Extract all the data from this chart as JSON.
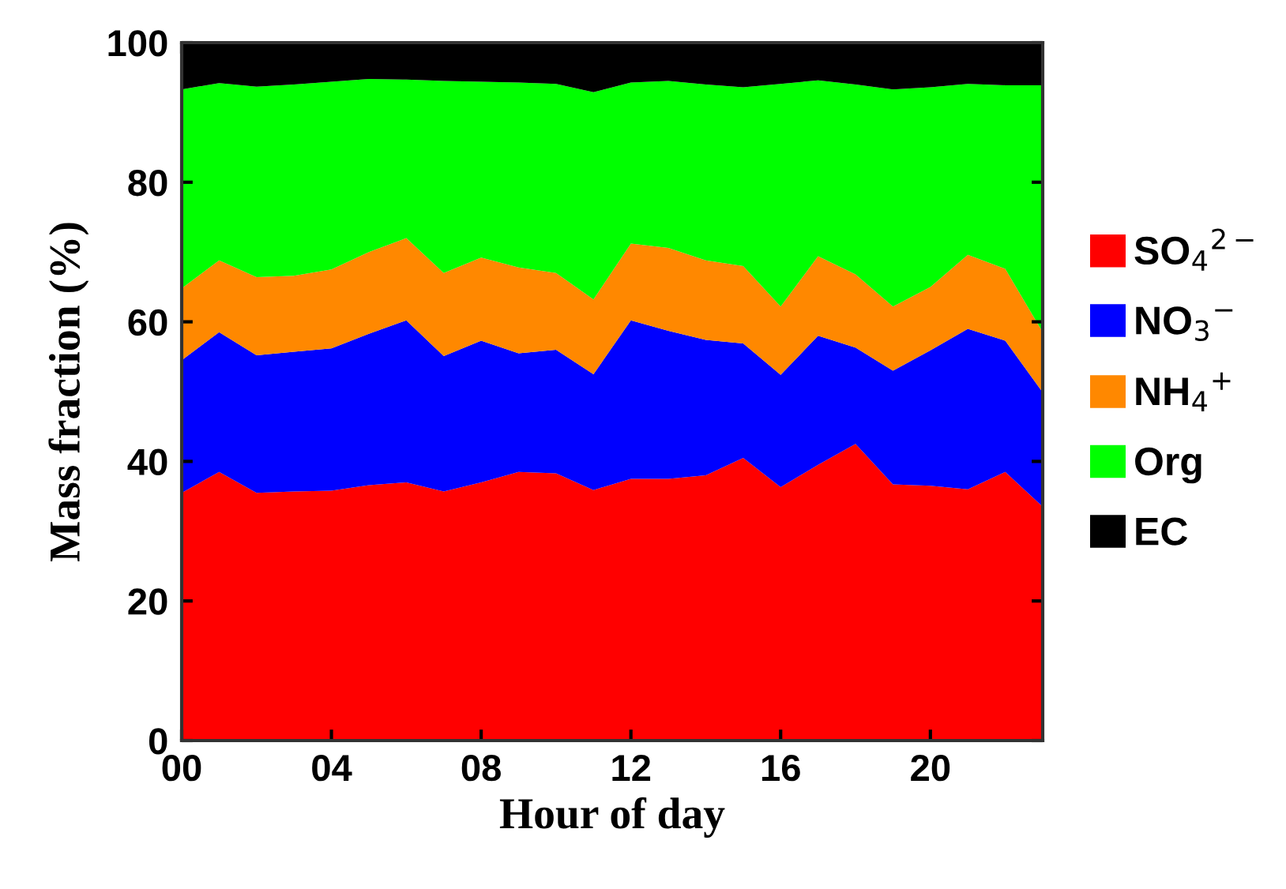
{
  "chart_data": {
    "type": "area",
    "stacked": true,
    "xlabel": "Hour of day",
    "ylabel": "Mass fraction (%)",
    "x": [
      0,
      1,
      2,
      3,
      4,
      5,
      6,
      7,
      8,
      9,
      10,
      11,
      12,
      13,
      14,
      15,
      16,
      17,
      18,
      19,
      20,
      21,
      22,
      23
    ],
    "xlim": [
      0,
      23
    ],
    "xticks": [
      {
        "value": 0,
        "label": "00"
      },
      {
        "value": 4,
        "label": "04"
      },
      {
        "value": 8,
        "label": "08"
      },
      12,
      16,
      20
    ],
    "ylim": [
      0,
      100
    ],
    "yticks": [
      0,
      20,
      40,
      60,
      80,
      100
    ],
    "grid": false,
    "legend": "right",
    "series": [
      {
        "name": "SO$_{4}$$^{2−}$",
        "color": "#ff0000",
        "values": [
          35.5,
          38.5,
          35.5,
          35.7,
          35.8,
          36.6,
          37,
          35.7,
          37,
          38.5,
          38.3,
          35.9,
          37.5,
          37.5,
          38,
          40.5,
          36.3,
          39.5,
          42.5,
          36.7,
          36.5,
          36,
          38.5,
          33.5
        ]
      },
      {
        "name": "NO$_{3}$$^{−}$",
        "color": "#0000ff",
        "values": [
          19.0,
          20.0,
          19.7,
          20.0,
          20.4,
          21.7,
          23.2,
          19.4,
          20.3,
          17.0,
          17.7,
          16.6,
          22.7,
          21.2,
          19.4,
          16.4,
          16.1,
          18.5,
          13.8,
          16.3,
          19.4,
          23.0,
          18.8,
          16.4
        ]
      },
      {
        "name": "NH$_{4}$$^{+}$",
        "color": "#ff8800",
        "values": [
          10.3,
          10.3,
          11.2,
          10.9,
          11.3,
          11.7,
          11.8,
          11.9,
          11.9,
          12.3,
          11.0,
          10.7,
          11.0,
          11.9,
          11.4,
          11.1,
          9.8,
          11.4,
          10.5,
          9.2,
          9.1,
          10.6,
          10.3,
          8.6
        ]
      },
      {
        "name": "Org",
        "color": "#00ff00",
        "values": [
          28.5,
          25.4,
          27.3,
          27.4,
          26.9,
          24.8,
          22.7,
          27.5,
          25.2,
          26.5,
          27.1,
          29.7,
          23.1,
          23.9,
          25.2,
          25.6,
          31.9,
          25.2,
          27.2,
          31.1,
          28.6,
          24.5,
          26.3,
          35.4
        ]
      },
      {
        "name": "EC",
        "color": "#000000",
        "values": [
          6.7,
          5.8,
          6.3,
          6.0,
          5.6,
          5.2,
          5.3,
          5.5,
          5.6,
          5.7,
          5.9,
          7.1,
          5.7,
          5.5,
          6.0,
          6.4,
          5.9,
          5.4,
          6.0,
          6.7,
          6.4,
          5.9,
          6.1,
          6.1
        ]
      }
    ]
  }
}
